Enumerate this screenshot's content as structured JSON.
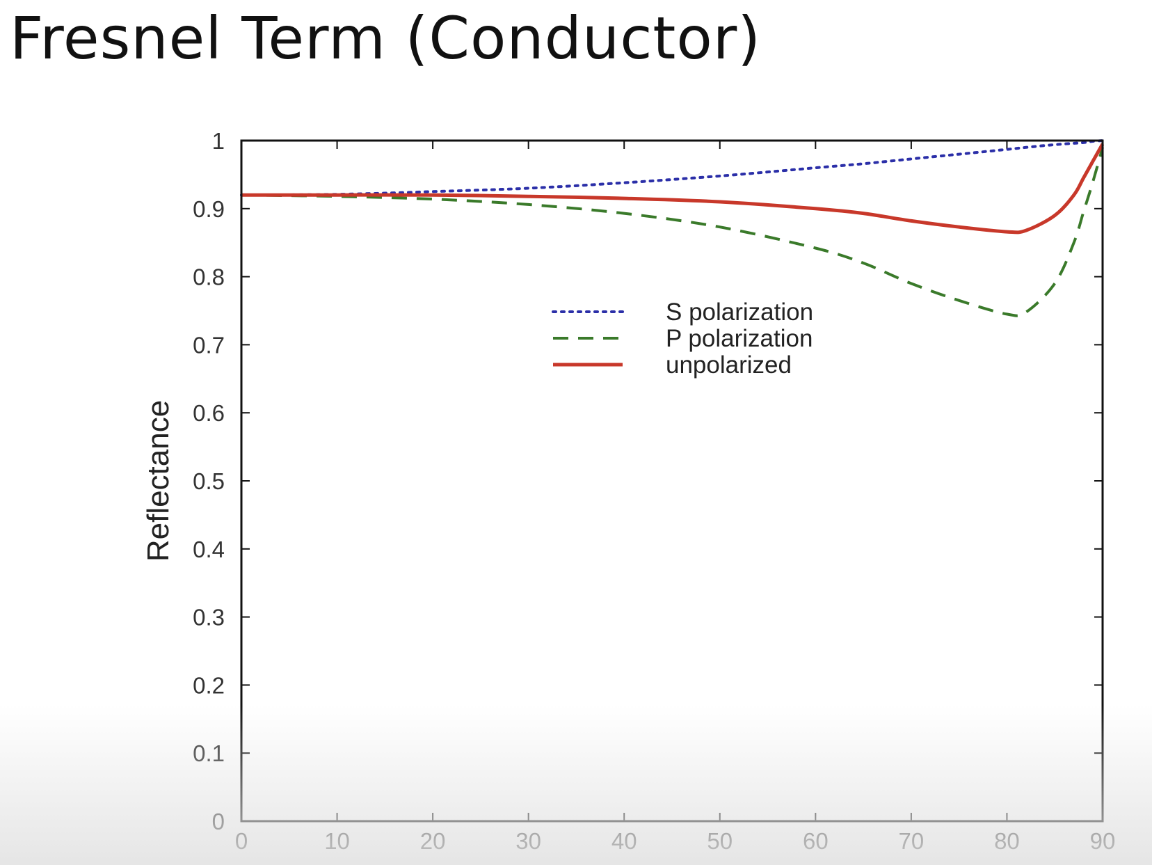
{
  "slide": {
    "title": "Fresnel Term (Conductor)"
  },
  "chart_data": {
    "type": "line",
    "title": "Fresnel Term (Conductor)",
    "xlabel": "",
    "ylabel": "Reflectance",
    "xlim": [
      0,
      90
    ],
    "ylim": [
      0,
      1
    ],
    "x_ticks": [
      0,
      10,
      20,
      30,
      40,
      50,
      60,
      70,
      80,
      90
    ],
    "y_ticks": [
      0,
      0.1,
      0.2,
      0.3,
      0.4,
      0.5,
      0.6,
      0.7,
      0.8,
      0.9,
      1
    ],
    "y_tick_labels": [
      "0",
      "0.1",
      "0.2",
      "0.3",
      "0.4",
      "0.5",
      "0.6",
      "0.7",
      "0.8",
      "0.9",
      "1"
    ],
    "grid": false,
    "legend_position": "upper-center",
    "x": [
      0,
      10,
      20,
      30,
      40,
      50,
      60,
      65,
      70,
      75,
      80,
      82,
      85,
      87,
      88,
      89,
      90
    ],
    "series": [
      {
        "name": "S polarization",
        "style": "dotted",
        "color": "#2b2fa8",
        "values": [
          0.92,
          0.921,
          0.925,
          0.93,
          0.938,
          0.948,
          0.96,
          0.966,
          0.973,
          0.98,
          0.987,
          0.99,
          0.994,
          0.996,
          0.997,
          0.999,
          1.0
        ]
      },
      {
        "name": "P polarization",
        "style": "dashed",
        "color": "#3a7a2a",
        "values": [
          0.92,
          0.918,
          0.914,
          0.906,
          0.893,
          0.873,
          0.842,
          0.82,
          0.79,
          0.765,
          0.745,
          0.748,
          0.79,
          0.85,
          0.895,
          0.94,
          0.99
        ]
      },
      {
        "name": "unpolarized",
        "style": "solid",
        "color": "#c8382a",
        "values": [
          0.92,
          0.92,
          0.92,
          0.918,
          0.915,
          0.91,
          0.9,
          0.893,
          0.882,
          0.873,
          0.866,
          0.868,
          0.89,
          0.92,
          0.945,
          0.97,
          0.995
        ]
      }
    ]
  }
}
